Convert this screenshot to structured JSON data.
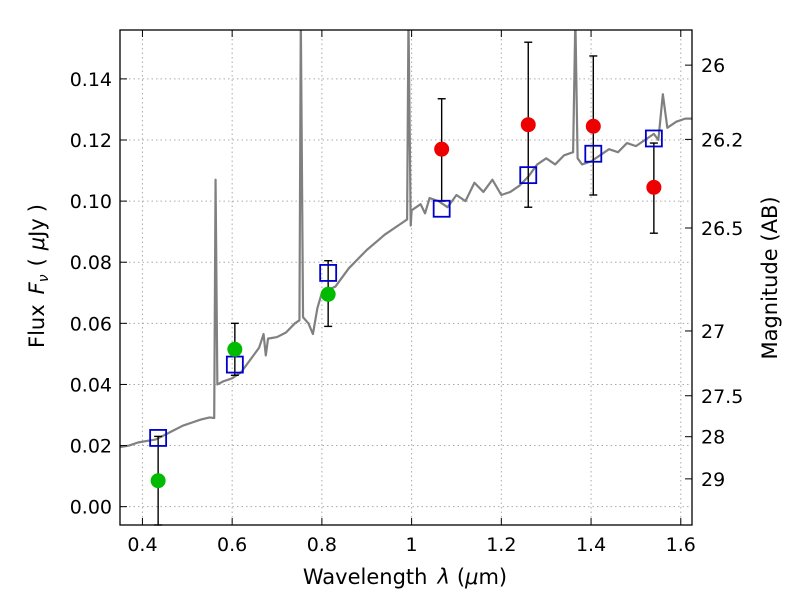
{
  "chart_data": {
    "type": "scatter",
    "title": "",
    "xlabel_text": "Wavelength",
    "xlabel_lambda": "λ",
    "xlabel_unit_open": "(",
    "xlabel_unit_mu": "μ",
    "xlabel_unit_rest": "m)",
    "ylabel_text": "Flux",
    "ylabel_symbol": "F",
    "ylabel_subscript": "ν",
    "ylabel_unit_open": "(",
    "ylabel_unit_mu": "μ",
    "ylabel_unit_rest": "Jy",
    "ylabel_unit_close": ")",
    "right_ylabel": "Magnitude (AB)",
    "xlim": [
      0.35,
      1.625
    ],
    "ylim": [
      -0.006,
      0.156
    ],
    "grid": true,
    "x_ticks": [
      {
        "value": 0.4,
        "label": "0.4"
      },
      {
        "value": 0.6,
        "label": "0.6"
      },
      {
        "value": 0.8,
        "label": "0.8"
      },
      {
        "value": 1.0,
        "label": "1"
      },
      {
        "value": 1.2,
        "label": "1.2"
      },
      {
        "value": 1.4,
        "label": "1.4"
      },
      {
        "value": 1.6,
        "label": "1.6"
      }
    ],
    "y_ticks": [
      {
        "value": 0.0,
        "label": "0.00"
      },
      {
        "value": 0.02,
        "label": "0.02"
      },
      {
        "value": 0.04,
        "label": "0.04"
      },
      {
        "value": 0.06,
        "label": "0.06"
      },
      {
        "value": 0.08,
        "label": "0.08"
      },
      {
        "value": 0.1,
        "label": "0.10"
      },
      {
        "value": 0.12,
        "label": "0.12"
      },
      {
        "value": 0.14,
        "label": "0.14"
      }
    ],
    "right_ticks": [
      {
        "flux": 0.1445,
        "label": "26"
      },
      {
        "flux": 0.1202,
        "label": "26.2"
      },
      {
        "flux": 0.0912,
        "label": "26.5"
      },
      {
        "flux": 0.0575,
        "label": "27"
      },
      {
        "flux": 0.0363,
        "label": "27.5"
      },
      {
        "flux": 0.0229,
        "label": "28"
      },
      {
        "flux": 0.0091,
        "label": "29"
      }
    ],
    "colors": {
      "spectrum": "#808080",
      "model_box": "#0000cc",
      "detection": "#ee0000",
      "hst_point": "#00bb00",
      "errorbar": "#000000",
      "grid": "#aaaaaa"
    },
    "series": [
      {
        "name": "model spectrum",
        "kind": "line",
        "points": [
          [
            0.35,
            0.0195
          ],
          [
            0.37,
            0.02
          ],
          [
            0.39,
            0.021
          ],
          [
            0.41,
            0.0215
          ],
          [
            0.43,
            0.022
          ],
          [
            0.45,
            0.0235
          ],
          [
            0.47,
            0.025
          ],
          [
            0.49,
            0.0265
          ],
          [
            0.51,
            0.0275
          ],
          [
            0.53,
            0.0285
          ],
          [
            0.55,
            0.0292
          ],
          [
            0.56,
            0.029
          ],
          [
            0.563,
            0.107
          ],
          [
            0.567,
            0.04
          ],
          [
            0.58,
            0.041
          ],
          [
            0.6,
            0.042
          ],
          [
            0.62,
            0.044
          ],
          [
            0.64,
            0.048
          ],
          [
            0.66,
            0.052
          ],
          [
            0.67,
            0.0565
          ],
          [
            0.675,
            0.0495
          ],
          [
            0.68,
            0.055
          ],
          [
            0.7,
            0.0555
          ],
          [
            0.72,
            0.057
          ],
          [
            0.74,
            0.06
          ],
          [
            0.75,
            0.061
          ],
          [
            0.753,
            0.16
          ],
          [
            0.758,
            0.062
          ],
          [
            0.77,
            0.06
          ],
          [
            0.78,
            0.0565
          ],
          [
            0.79,
            0.065
          ],
          [
            0.8,
            0.07
          ],
          [
            0.83,
            0.072
          ],
          [
            0.86,
            0.078
          ],
          [
            0.9,
            0.084
          ],
          [
            0.94,
            0.089
          ],
          [
            0.98,
            0.093
          ],
          [
            0.99,
            0.094
          ],
          [
            0.993,
            0.16
          ],
          [
            0.998,
            0.092
          ],
          [
            1.0,
            0.097
          ],
          [
            1.02,
            0.099
          ],
          [
            1.03,
            0.096
          ],
          [
            1.04,
            0.101
          ],
          [
            1.06,
            0.1
          ],
          [
            1.08,
            0.098
          ],
          [
            1.1,
            0.102
          ],
          [
            1.12,
            0.1
          ],
          [
            1.14,
            0.106
          ],
          [
            1.16,
            0.103
          ],
          [
            1.18,
            0.107
          ],
          [
            1.2,
            0.102
          ],
          [
            1.22,
            0.103
          ],
          [
            1.24,
            0.105
          ],
          [
            1.26,
            0.108
          ],
          [
            1.28,
            0.112
          ],
          [
            1.3,
            0.114
          ],
          [
            1.32,
            0.112
          ],
          [
            1.34,
            0.115
          ],
          [
            1.36,
            0.116
          ],
          [
            1.365,
            0.16
          ],
          [
            1.37,
            0.114
          ],
          [
            1.38,
            0.112
          ],
          [
            1.4,
            0.113
          ],
          [
            1.42,
            0.115
          ],
          [
            1.44,
            0.117
          ],
          [
            1.46,
            0.116
          ],
          [
            1.48,
            0.119
          ],
          [
            1.5,
            0.118
          ],
          [
            1.52,
            0.12
          ],
          [
            1.54,
            0.122
          ],
          [
            1.55,
            0.12
          ],
          [
            1.56,
            0.135
          ],
          [
            1.57,
            0.124
          ],
          [
            1.59,
            0.126
          ],
          [
            1.61,
            0.127
          ],
          [
            1.625,
            0.127
          ]
        ]
      },
      {
        "name": "model photometry",
        "kind": "open-square",
        "points": [
          [
            0.435,
            0.0225
          ],
          [
            0.606,
            0.0465
          ],
          [
            0.814,
            0.0765
          ],
          [
            1.067,
            0.0975
          ],
          [
            1.26,
            0.1085
          ],
          [
            1.405,
            0.1155
          ],
          [
            1.54,
            0.1205
          ]
        ]
      },
      {
        "name": "measured (red)",
        "kind": "filled-circle",
        "color_key": "detection",
        "points": [
          {
            "x": 1.067,
            "y": 0.117,
            "ylo": 0.1,
            "yhi": 0.1335
          },
          {
            "x": 1.26,
            "y": 0.125,
            "ylo": 0.098,
            "yhi": 0.152
          },
          {
            "x": 1.405,
            "y": 0.1245,
            "ylo": 0.102,
            "yhi": 0.1475
          },
          {
            "x": 1.54,
            "y": 0.1045,
            "ylo": 0.0895,
            "yhi": 0.119
          }
        ]
      },
      {
        "name": "measured (green)",
        "kind": "filled-circle",
        "color_key": "hst_point",
        "points": [
          {
            "x": 0.435,
            "y": 0.0085,
            "ylo": -0.006,
            "yhi": 0.023
          },
          {
            "x": 0.606,
            "y": 0.0515,
            "ylo": 0.043,
            "yhi": 0.06
          },
          {
            "x": 0.814,
            "y": 0.0695,
            "ylo": 0.059,
            "yhi": 0.0805
          }
        ]
      }
    ]
  }
}
